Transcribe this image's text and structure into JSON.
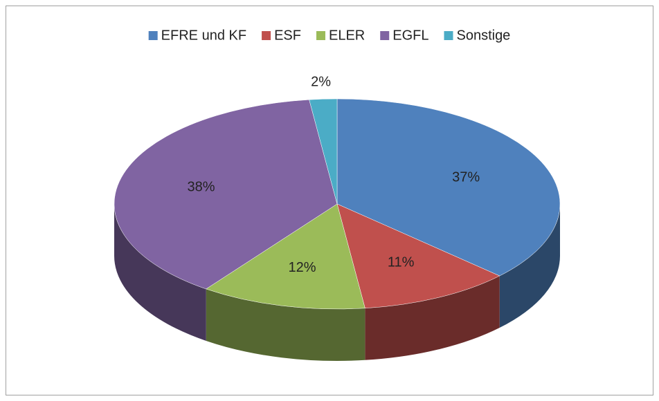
{
  "chart_data": {
    "type": "pie3d",
    "categories": [
      "EFRE und KF",
      "ESF",
      "ELER",
      "EGFL",
      "Sonstige"
    ],
    "values": [
      37,
      11,
      12,
      38,
      2
    ],
    "value_labels": [
      "37%",
      "11%",
      "12%",
      "38%",
      "2%"
    ],
    "colors": [
      "#4F81BD",
      "#C0504D",
      "#9BBB59",
      "#8064A2",
      "#4BACC6"
    ],
    "legend": "top"
  }
}
